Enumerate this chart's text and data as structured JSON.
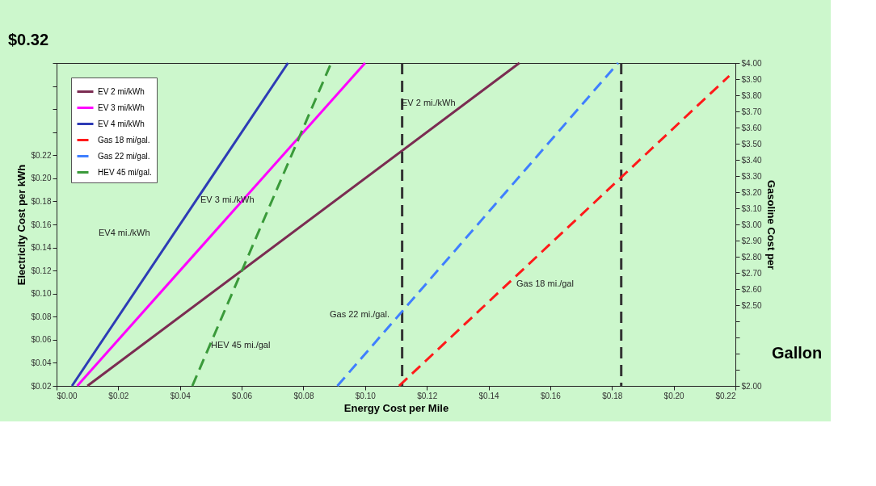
{
  "chart_data": {
    "type": "line",
    "xlabel": "Energy Cost per Mile",
    "ylabel": "Electricity Cost per kWh",
    "y2label": "Gasoline Cost per",
    "xlim": [
      0.0,
      0.22
    ],
    "xticks": [
      {
        "value": 0.0,
        "label": "$0.00"
      },
      {
        "value": 0.02,
        "label": "$0.02"
      },
      {
        "value": 0.04,
        "label": "$0.04"
      },
      {
        "value": 0.06,
        "label": "$0.06"
      },
      {
        "value": 0.08,
        "label": "$0.08"
      },
      {
        "value": 0.1,
        "label": "$0.10"
      },
      {
        "value": 0.12,
        "label": "$0.12"
      },
      {
        "value": 0.14,
        "label": "$0.14"
      },
      {
        "value": 0.16,
        "label": "$0.16"
      },
      {
        "value": 0.18,
        "label": "$0.18"
      },
      {
        "value": 0.2,
        "label": "$0.20"
      },
      {
        "value": 0.22,
        "label": "$0.22"
      }
    ],
    "ylim": [
      0.02,
      0.3
    ],
    "yticks": [
      {
        "value": 0.02,
        "label": "$0.02"
      },
      {
        "value": 0.04,
        "label": "$0.04"
      },
      {
        "value": 0.06,
        "label": "$0.06"
      },
      {
        "value": 0.08,
        "label": "$0.08"
      },
      {
        "value": 0.1,
        "label": "$0.10"
      },
      {
        "value": 0.12,
        "label": "$0.12"
      },
      {
        "value": 0.14,
        "label": "$0.14"
      },
      {
        "value": 0.16,
        "label": "$0.16"
      },
      {
        "value": 0.18,
        "label": "$0.18"
      },
      {
        "value": 0.2,
        "label": "$0.20"
      },
      {
        "value": 0.22,
        "label": "$0.22"
      },
      {
        "value": 0.24,
        "label": null
      },
      {
        "value": 0.26,
        "label": null
      },
      {
        "value": 0.28,
        "label": null
      },
      {
        "value": 0.3,
        "label": null
      }
    ],
    "y2lim": [
      2.0,
      4.0
    ],
    "y2ticks": [
      {
        "value": 2.0,
        "label": "$2.00"
      },
      {
        "value": 2.1,
        "label": null
      },
      {
        "value": 2.2,
        "label": null
      },
      {
        "value": 2.3,
        "label": null
      },
      {
        "value": 2.4,
        "label": null
      },
      {
        "value": 2.5,
        "label": "$2.50"
      },
      {
        "value": 2.6,
        "label": "$2.60"
      },
      {
        "value": 2.7,
        "label": "$2.70"
      },
      {
        "value": 2.8,
        "label": "$2.80"
      },
      {
        "value": 2.9,
        "label": "$2.90"
      },
      {
        "value": 3.0,
        "label": "$3.00"
      },
      {
        "value": 3.1,
        "label": "$3.10"
      },
      {
        "value": 3.2,
        "label": "$3.20"
      },
      {
        "value": 3.3,
        "label": "$3.30"
      },
      {
        "value": 3.4,
        "label": "$3.40"
      },
      {
        "value": 3.5,
        "label": "$3.50"
      },
      {
        "value": 3.6,
        "label": "$3.60"
      },
      {
        "value": 3.7,
        "label": "$3.70"
      },
      {
        "value": 3.8,
        "label": "$3.80"
      },
      {
        "value": 3.9,
        "label": "$3.90"
      },
      {
        "value": 4.0,
        "label": "$4.00"
      }
    ],
    "series": [
      {
        "name": "EV 2 mi/kWh",
        "color": "#7b2c52",
        "line_style": "solid",
        "x": [
          0.01,
          0.15
        ],
        "values": [
          0.02,
          0.3
        ]
      },
      {
        "name": "EV 3 mi/kWh",
        "color": "#ff00ff",
        "line_style": "solid",
        "x": [
          0.0067,
          0.1
        ],
        "values": [
          0.02,
          0.3
        ]
      },
      {
        "name": "EV 4 mi/kWh",
        "color": "#2e3bb5",
        "line_style": "solid",
        "x": [
          0.005,
          0.075
        ],
        "values": [
          0.02,
          0.3
        ]
      },
      {
        "name": "Gas 18 mi/gal.",
        "color": "#ff1a1a",
        "line_style": "dashed",
        "axis": "y2",
        "x": [
          0.111,
          0.218
        ],
        "values": [
          2.0,
          3.92
        ]
      },
      {
        "name": "Gas 22 mi/gal.",
        "color": "#3f7fff",
        "line_style": "dashed",
        "axis": "y2",
        "x": [
          0.091,
          0.182
        ],
        "values": [
          2.0,
          4.0
        ]
      },
      {
        "name": "HEV 45 mi/gal.",
        "color": "#3a9a3a",
        "line_style": "dashed",
        "axis": "y2",
        "x": [
          0.044,
          0.089
        ],
        "values": [
          2.0,
          4.0
        ]
      }
    ],
    "ref_lines": [
      {
        "axis": "x",
        "value": 0.112,
        "color": "#333333",
        "line_style": "dashed"
      },
      {
        "axis": "x",
        "value": 0.183,
        "color": "#333333",
        "line_style": "dashed"
      }
    ],
    "annotations": [
      "EV 2 mi./kWh",
      "EV 3 mi./kWh",
      "EV4 mi./kWh",
      "HEV 45 mi./gal",
      "Gas 22 mi./gal.",
      "Gas 18 mi./gal",
      "$0.32",
      "Gallon"
    ],
    "legend": "top left",
    "grid": false,
    "marker": "none"
  }
}
